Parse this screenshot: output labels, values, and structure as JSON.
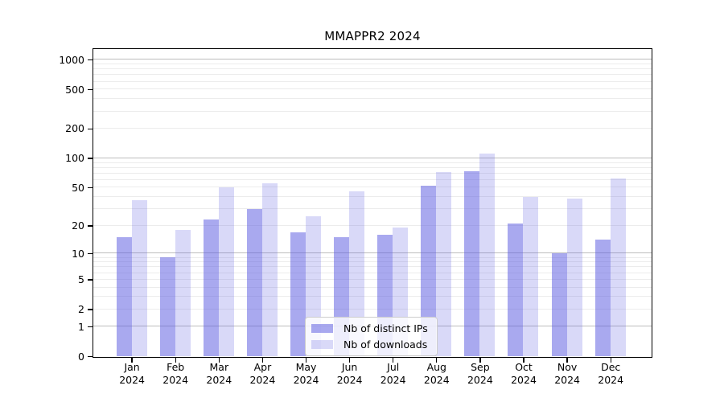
{
  "title": "MMAPPR2 2024",
  "legend": {
    "items": [
      {
        "label": "Nb of distinct IPs",
        "color": "rgba(90,90,225,0.52)"
      },
      {
        "label": "Nb of downloads",
        "color": "rgba(90,90,225,0.23)"
      }
    ],
    "position": "lower center"
  },
  "axes": {
    "x_year_label": "2024",
    "y_tick_labels": [
      "0",
      "1",
      "2",
      "5",
      "10",
      "20",
      "50",
      "100",
      "200",
      "500",
      "1000"
    ]
  },
  "colors": {
    "bar_base": "#5a5ae1",
    "bar_fill_ips": "rgba(90,90,225,0.52)",
    "bar_fill_downloads": "rgba(90,90,225,0.23)",
    "grid_major": "#bdbdbd",
    "grid_minor": "#ececec",
    "spine": "#000000",
    "background": "#ffffff"
  },
  "chart_data": {
    "type": "bar",
    "title": "MMAPPR2 2024",
    "year": "2024",
    "categories": [
      "Jan",
      "Feb",
      "Mar",
      "Apr",
      "May",
      "Jun",
      "Jul",
      "Aug",
      "Sep",
      "Oct",
      "Nov",
      "Dec"
    ],
    "series": [
      {
        "name": "Nb of distinct IPs",
        "color": "rgba(90,90,225,0.52)",
        "values": [
          15,
          9,
          23,
          30,
          17,
          15,
          16,
          52,
          73,
          21,
          10,
          14
        ]
      },
      {
        "name": "Nb of downloads",
        "color": "rgba(90,90,225,0.23)",
        "values": [
          37,
          18,
          50,
          55,
          25,
          45,
          19,
          72,
          110,
          40,
          38,
          62
        ]
      }
    ],
    "xlabel": "",
    "ylabel": "",
    "yscale": "log1p",
    "yticks": [
      0,
      1,
      2,
      5,
      10,
      20,
      50,
      100,
      200,
      500,
      1000
    ],
    "ylim": [
      0,
      1280
    ],
    "grid": true,
    "legend_position": "lower center"
  }
}
